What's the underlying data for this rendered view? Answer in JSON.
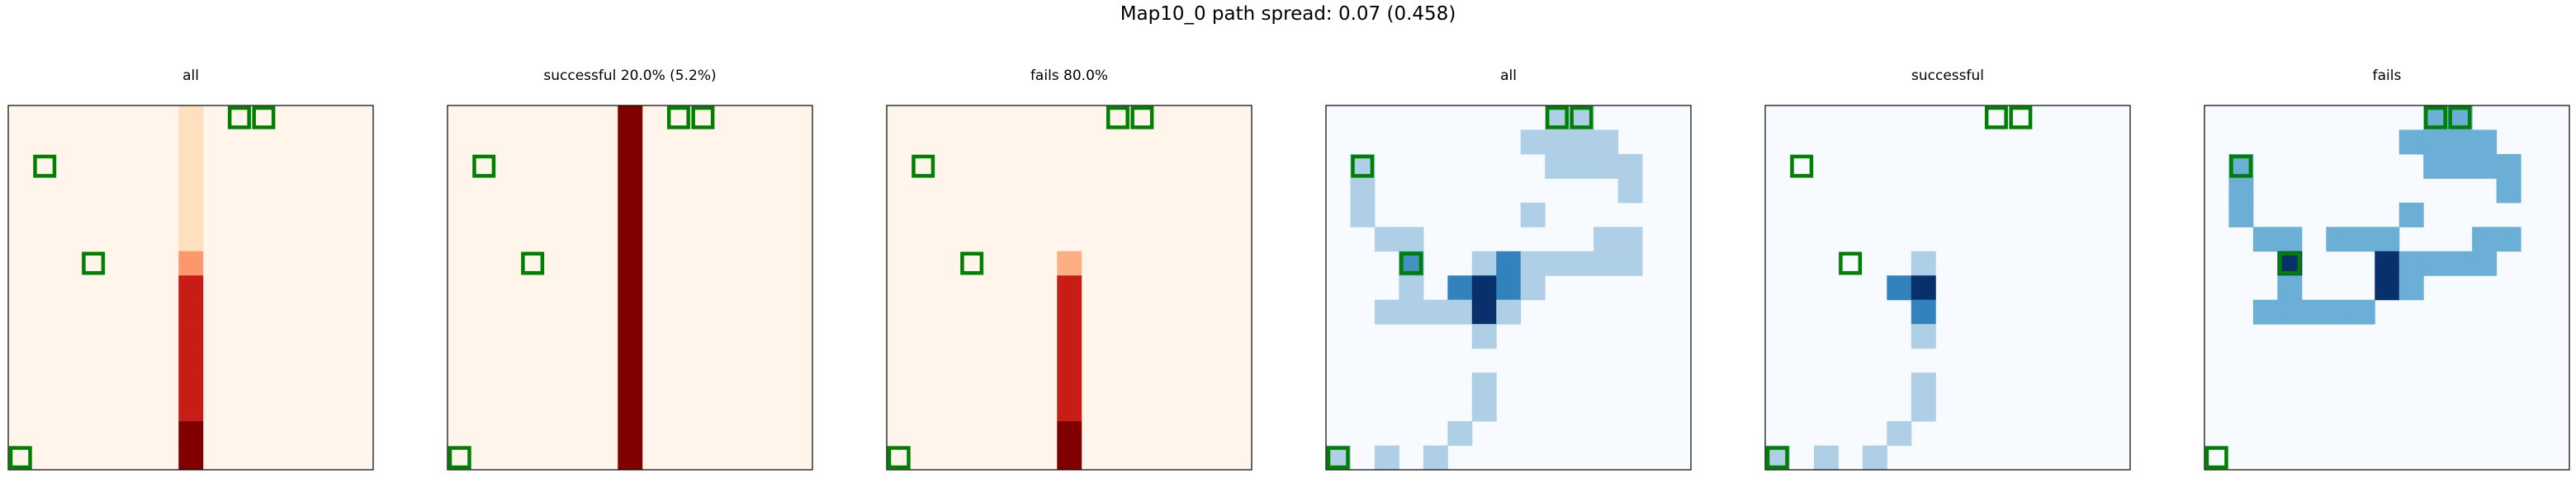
{
  "suptitle": "Map10_0 path spread: 0.07 (0.458)",
  "chart_data": {
    "type": "heatmap",
    "grid": [
      15,
      15
    ],
    "markers": [
      [
        9,
        0
      ],
      [
        10,
        0
      ],
      [
        1,
        2
      ],
      [
        3,
        6
      ],
      [
        0,
        14
      ]
    ],
    "marker_color": "#008000",
    "panels": [
      {
        "title": "all",
        "cmap": "Reds",
        "cells": [
          [
            7,
            0,
            0.15
          ],
          [
            7,
            1,
            0.15
          ],
          [
            7,
            2,
            0.15
          ],
          [
            7,
            3,
            0.15
          ],
          [
            7,
            4,
            0.15
          ],
          [
            7,
            5,
            0.15
          ],
          [
            7,
            6,
            0.45
          ],
          [
            7,
            7,
            0.82
          ],
          [
            7,
            8,
            0.82
          ],
          [
            7,
            9,
            0.82
          ],
          [
            7,
            10,
            0.82
          ],
          [
            7,
            11,
            0.82
          ],
          [
            7,
            12,
            0.82
          ],
          [
            7,
            13,
            1.0
          ],
          [
            7,
            14,
            1.0
          ]
        ]
      },
      {
        "title": "successful 20.0% (5.2%)",
        "cmap": "Reds",
        "cells": [
          [
            7,
            0,
            1.0
          ],
          [
            7,
            1,
            1.0
          ],
          [
            7,
            2,
            1.0
          ],
          [
            7,
            3,
            1.0
          ],
          [
            7,
            4,
            1.0
          ],
          [
            7,
            5,
            1.0
          ],
          [
            7,
            6,
            1.0
          ],
          [
            7,
            7,
            1.0
          ],
          [
            7,
            8,
            1.0
          ],
          [
            7,
            9,
            1.0
          ],
          [
            7,
            10,
            1.0
          ],
          [
            7,
            11,
            1.0
          ],
          [
            7,
            12,
            1.0
          ],
          [
            7,
            13,
            1.0
          ],
          [
            7,
            14,
            1.0
          ]
        ]
      },
      {
        "title": "fails 80.0%",
        "cmap": "Reds",
        "cells": [
          [
            7,
            6,
            0.35
          ],
          [
            7,
            7,
            0.82
          ],
          [
            7,
            8,
            0.82
          ],
          [
            7,
            9,
            0.82
          ],
          [
            7,
            10,
            0.82
          ],
          [
            7,
            11,
            0.82
          ],
          [
            7,
            12,
            0.82
          ],
          [
            7,
            13,
            1.0
          ],
          [
            7,
            14,
            1.0
          ]
        ]
      },
      {
        "title": "all",
        "cmap": "Blues",
        "cells": [
          [
            9,
            0,
            0.3
          ],
          [
            10,
            0,
            0.3
          ],
          [
            8,
            1,
            0.3
          ],
          [
            9,
            1,
            0.3
          ],
          [
            10,
            1,
            0.3
          ],
          [
            11,
            1,
            0.3
          ],
          [
            1,
            2,
            0.3
          ],
          [
            9,
            2,
            0.3
          ],
          [
            10,
            2,
            0.3
          ],
          [
            11,
            2,
            0.3
          ],
          [
            12,
            2,
            0.3
          ],
          [
            1,
            3,
            0.3
          ],
          [
            12,
            3,
            0.3
          ],
          [
            1,
            4,
            0.3
          ],
          [
            8,
            4,
            0.3
          ],
          [
            2,
            5,
            0.3
          ],
          [
            3,
            5,
            0.3
          ],
          [
            11,
            5,
            0.3
          ],
          [
            12,
            5,
            0.3
          ],
          [
            3,
            6,
            0.6
          ],
          [
            6,
            6,
            0.3
          ],
          [
            7,
            6,
            0.65
          ],
          [
            8,
            6,
            0.3
          ],
          [
            9,
            6,
            0.3
          ],
          [
            10,
            6,
            0.3
          ],
          [
            11,
            6,
            0.3
          ],
          [
            12,
            6,
            0.3
          ],
          [
            3,
            7,
            0.3
          ],
          [
            5,
            7,
            0.65
          ],
          [
            6,
            7,
            1.0
          ],
          [
            7,
            7,
            0.65
          ],
          [
            8,
            7,
            0.3
          ],
          [
            2,
            8,
            0.3
          ],
          [
            3,
            8,
            0.3
          ],
          [
            4,
            8,
            0.3
          ],
          [
            5,
            8,
            0.3
          ],
          [
            6,
            8,
            1.0
          ],
          [
            7,
            8,
            0.3
          ],
          [
            6,
            9,
            0.3
          ],
          [
            6,
            11,
            0.3
          ],
          [
            6,
            12,
            0.3
          ],
          [
            5,
            13,
            0.3
          ],
          [
            0,
            14,
            0.3
          ],
          [
            2,
            14,
            0.3
          ],
          [
            4,
            14,
            0.3
          ]
        ]
      },
      {
        "title": "successful",
        "cmap": "Blues",
        "cells": [
          [
            6,
            6,
            0.3
          ],
          [
            5,
            7,
            0.65
          ],
          [
            6,
            7,
            1.0
          ],
          [
            6,
            8,
            0.65
          ],
          [
            6,
            9,
            0.3
          ],
          [
            6,
            11,
            0.3
          ],
          [
            6,
            12,
            0.3
          ],
          [
            5,
            13,
            0.3
          ],
          [
            0,
            14,
            0.3
          ],
          [
            2,
            14,
            0.3
          ],
          [
            4,
            14,
            0.3
          ]
        ]
      },
      {
        "title": "fails",
        "cmap": "Blues",
        "cells": [
          [
            9,
            0,
            0.5
          ],
          [
            10,
            0,
            0.5
          ],
          [
            8,
            1,
            0.5
          ],
          [
            9,
            1,
            0.5
          ],
          [
            10,
            1,
            0.5
          ],
          [
            11,
            1,
            0.5
          ],
          [
            1,
            2,
            0.5
          ],
          [
            9,
            2,
            0.5
          ],
          [
            10,
            2,
            0.5
          ],
          [
            11,
            2,
            0.5
          ],
          [
            12,
            2,
            0.5
          ],
          [
            1,
            3,
            0.5
          ],
          [
            12,
            3,
            0.5
          ],
          [
            1,
            4,
            0.5
          ],
          [
            8,
            4,
            0.5
          ],
          [
            2,
            5,
            0.5
          ],
          [
            3,
            5,
            0.5
          ],
          [
            5,
            5,
            0.5
          ],
          [
            6,
            5,
            0.5
          ],
          [
            7,
            5,
            0.5
          ],
          [
            11,
            5,
            0.5
          ],
          [
            12,
            5,
            0.5
          ],
          [
            3,
            6,
            1.0
          ],
          [
            7,
            6,
            1.0
          ],
          [
            8,
            6,
            0.5
          ],
          [
            9,
            6,
            0.5
          ],
          [
            10,
            6,
            0.5
          ],
          [
            11,
            6,
            0.5
          ],
          [
            3,
            7,
            0.5
          ],
          [
            7,
            7,
            1.0
          ],
          [
            8,
            7,
            0.5
          ],
          [
            2,
            8,
            0.5
          ],
          [
            3,
            8,
            0.5
          ],
          [
            4,
            8,
            0.5
          ],
          [
            5,
            8,
            0.5
          ],
          [
            6,
            8,
            0.5
          ]
        ]
      }
    ]
  }
}
